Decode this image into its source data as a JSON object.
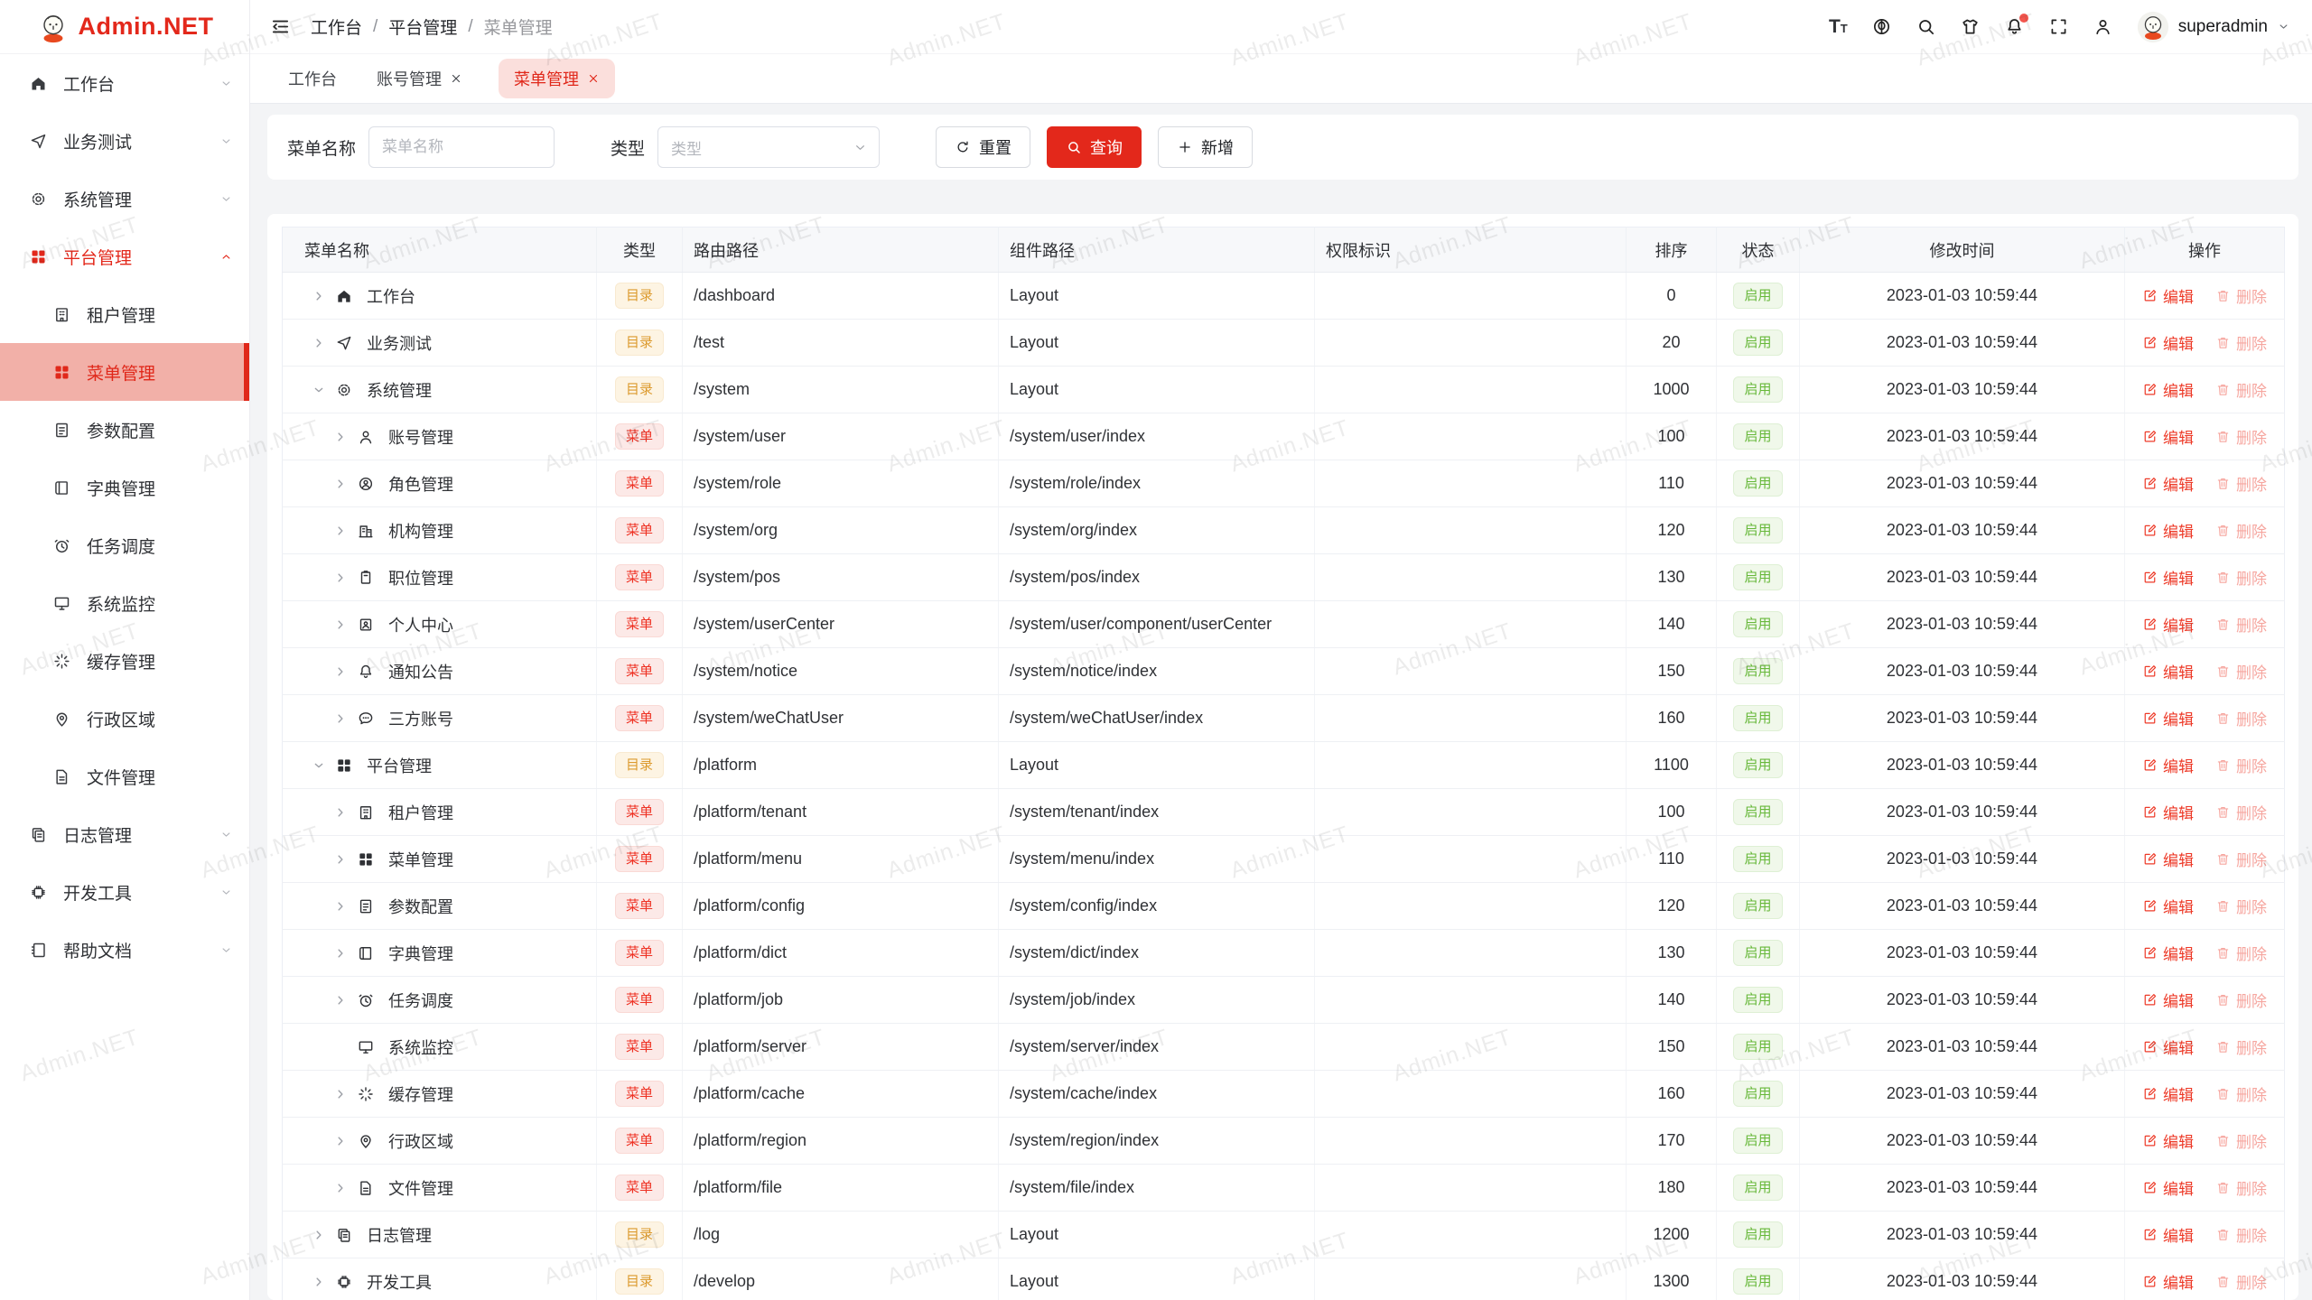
{
  "watermark": {
    "text": "Admin.NET"
  },
  "logo": {
    "title": "Admin.NET"
  },
  "header": {
    "breadcrumb": [
      "工作台",
      "平台管理",
      "菜单管理"
    ],
    "icons": [
      {
        "name": "font-size"
      },
      {
        "name": "language"
      },
      {
        "name": "search"
      },
      {
        "name": "theme"
      },
      {
        "name": "notification",
        "badge": true
      },
      {
        "name": "fullscreen"
      },
      {
        "name": "profile"
      }
    ],
    "user": "superadmin"
  },
  "tabs": [
    {
      "label": "工作台",
      "closable": false,
      "active": false
    },
    {
      "label": "账号管理",
      "closable": true,
      "active": false
    },
    {
      "label": "菜单管理",
      "closable": true,
      "active": true
    }
  ],
  "sidebar": {
    "items": [
      {
        "key": "workbench",
        "label": "工作台",
        "icon": "home",
        "chevron": "down"
      },
      {
        "key": "business-test",
        "label": "业务测试",
        "icon": "send",
        "chevron": "down"
      },
      {
        "key": "system-mgmt",
        "label": "系统管理",
        "icon": "gear",
        "chevron": "down"
      },
      {
        "key": "platform-mgmt",
        "label": "平台管理",
        "icon": "grid",
        "chevron": "up",
        "active": true,
        "children": [
          {
            "key": "tenant-mgmt",
            "label": "租户管理",
            "icon": "tenant"
          },
          {
            "key": "menu-mgmt",
            "label": "菜单管理",
            "icon": "grid",
            "selected": true
          },
          {
            "key": "param-config",
            "label": "参数配置",
            "icon": "config"
          },
          {
            "key": "dict-mgmt",
            "label": "字典管理",
            "icon": "dict"
          },
          {
            "key": "job-schedule",
            "label": "任务调度",
            "icon": "job"
          },
          {
            "key": "system-monitor",
            "label": "系统监控",
            "icon": "monitor"
          },
          {
            "key": "cache-mgmt",
            "label": "缓存管理",
            "icon": "cache"
          },
          {
            "key": "admin-region",
            "label": "行政区域",
            "icon": "region"
          },
          {
            "key": "file-mgmt",
            "label": "文件管理",
            "icon": "file"
          }
        ]
      },
      {
        "key": "log-mgmt",
        "label": "日志管理",
        "icon": "log",
        "chevron": "down"
      },
      {
        "key": "dev-tools",
        "label": "开发工具",
        "icon": "develop",
        "chevron": "down"
      },
      {
        "key": "help-docs",
        "label": "帮助文档",
        "icon": "docs",
        "chevron": "down"
      }
    ]
  },
  "filter": {
    "name_label": "菜单名称",
    "name_placeholder": "菜单名称",
    "type_label": "类型",
    "type_placeholder": "类型",
    "reset": "重置",
    "query": "查询",
    "add": "新增"
  },
  "table": {
    "columns": [
      "菜单名称",
      "类型",
      "路由路径",
      "组件路径",
      "权限标识",
      "排序",
      "状态",
      "修改时间",
      "操作"
    ],
    "type_labels": {
      "dir": "目录",
      "menu": "菜单"
    },
    "status_enabled": "启用",
    "actions": {
      "edit": "编辑",
      "delete": "删除"
    },
    "rows": [
      {
        "name": "工作台",
        "icon": "home",
        "level": 0,
        "expand": "closed",
        "type": "dir",
        "route": "/dashboard",
        "component": "Layout",
        "permission": "",
        "sort": "0",
        "status": "启用",
        "modified": "2023-01-03 10:59:44"
      },
      {
        "name": "业务测试",
        "icon": "send",
        "level": 0,
        "expand": "closed",
        "type": "dir",
        "route": "/test",
        "component": "Layout",
        "permission": "",
        "sort": "20",
        "status": "启用",
        "modified": "2023-01-03 10:59:44"
      },
      {
        "name": "系统管理",
        "icon": "gear",
        "level": 0,
        "expand": "open",
        "type": "dir",
        "route": "/system",
        "component": "Layout",
        "permission": "",
        "sort": "1000",
        "status": "启用",
        "modified": "2023-01-03 10:59:44"
      },
      {
        "name": "账号管理",
        "icon": "user",
        "level": 1,
        "expand": "closed",
        "type": "menu",
        "route": "/system/user",
        "component": "/system/user/index",
        "permission": "",
        "sort": "100",
        "status": "启用",
        "modified": "2023-01-03 10:59:44"
      },
      {
        "name": "角色管理",
        "icon": "role",
        "level": 1,
        "expand": "closed",
        "type": "menu",
        "route": "/system/role",
        "component": "/system/role/index",
        "permission": "",
        "sort": "110",
        "status": "启用",
        "modified": "2023-01-03 10:59:44"
      },
      {
        "name": "机构管理",
        "icon": "org",
        "level": 1,
        "expand": "closed",
        "type": "menu",
        "route": "/system/org",
        "component": "/system/org/index",
        "permission": "",
        "sort": "120",
        "status": "启用",
        "modified": "2023-01-03 10:59:44"
      },
      {
        "name": "职位管理",
        "icon": "pos",
        "level": 1,
        "expand": "closed",
        "type": "menu",
        "route": "/system/pos",
        "component": "/system/pos/index",
        "permission": "",
        "sort": "130",
        "status": "启用",
        "modified": "2023-01-03 10:59:44"
      },
      {
        "name": "个人中心",
        "icon": "usercenter",
        "level": 1,
        "expand": "closed",
        "type": "menu",
        "route": "/system/userCenter",
        "component": "/system/user/component/userCenter",
        "permission": "",
        "sort": "140",
        "status": "启用",
        "modified": "2023-01-03 10:59:44"
      },
      {
        "name": "通知公告",
        "icon": "notice",
        "level": 1,
        "expand": "closed",
        "type": "menu",
        "route": "/system/notice",
        "component": "/system/notice/index",
        "permission": "",
        "sort": "150",
        "status": "启用",
        "modified": "2023-01-03 10:59:44"
      },
      {
        "name": "三方账号",
        "icon": "wechat",
        "level": 1,
        "expand": "closed",
        "type": "menu",
        "route": "/system/weChatUser",
        "component": "/system/weChatUser/index",
        "permission": "",
        "sort": "160",
        "status": "启用",
        "modified": "2023-01-03 10:59:44"
      },
      {
        "name": "平台管理",
        "icon": "grid",
        "level": 0,
        "expand": "open",
        "type": "dir",
        "route": "/platform",
        "component": "Layout",
        "permission": "",
        "sort": "1100",
        "status": "启用",
        "modified": "2023-01-03 10:59:44"
      },
      {
        "name": "租户管理",
        "icon": "tenant",
        "level": 1,
        "expand": "closed",
        "type": "menu",
        "route": "/platform/tenant",
        "component": "/system/tenant/index",
        "permission": "",
        "sort": "100",
        "status": "启用",
        "modified": "2023-01-03 10:59:44"
      },
      {
        "name": "菜单管理",
        "icon": "grid",
        "level": 1,
        "expand": "closed",
        "type": "menu",
        "route": "/platform/menu",
        "component": "/system/menu/index",
        "permission": "",
        "sort": "110",
        "status": "启用",
        "modified": "2023-01-03 10:59:44"
      },
      {
        "name": "参数配置",
        "icon": "config",
        "level": 1,
        "expand": "closed",
        "type": "menu",
        "route": "/platform/config",
        "component": "/system/config/index",
        "permission": "",
        "sort": "120",
        "status": "启用",
        "modified": "2023-01-03 10:59:44"
      },
      {
        "name": "字典管理",
        "icon": "dict",
        "level": 1,
        "expand": "closed",
        "type": "menu",
        "route": "/platform/dict",
        "component": "/system/dict/index",
        "permission": "",
        "sort": "130",
        "status": "启用",
        "modified": "2023-01-03 10:59:44"
      },
      {
        "name": "任务调度",
        "icon": "job",
        "level": 1,
        "expand": "closed",
        "type": "menu",
        "route": "/platform/job",
        "component": "/system/job/index",
        "permission": "",
        "sort": "140",
        "status": "启用",
        "modified": "2023-01-03 10:59:44"
      },
      {
        "name": "系统监控",
        "icon": "monitor",
        "level": 1,
        "expand": "none",
        "type": "menu",
        "route": "/platform/server",
        "component": "/system/server/index",
        "permission": "",
        "sort": "150",
        "status": "启用",
        "modified": "2023-01-03 10:59:44"
      },
      {
        "name": "缓存管理",
        "icon": "cache",
        "level": 1,
        "expand": "closed",
        "type": "menu",
        "route": "/platform/cache",
        "component": "/system/cache/index",
        "permission": "",
        "sort": "160",
        "status": "启用",
        "modified": "2023-01-03 10:59:44"
      },
      {
        "name": "行政区域",
        "icon": "region",
        "level": 1,
        "expand": "closed",
        "type": "menu",
        "route": "/platform/region",
        "component": "/system/region/index",
        "permission": "",
        "sort": "170",
        "status": "启用",
        "modified": "2023-01-03 10:59:44"
      },
      {
        "name": "文件管理",
        "icon": "file",
        "level": 1,
        "expand": "closed",
        "type": "menu",
        "route": "/platform/file",
        "component": "/system/file/index",
        "permission": "",
        "sort": "180",
        "status": "启用",
        "modified": "2023-01-03 10:59:44"
      },
      {
        "name": "日志管理",
        "icon": "log",
        "level": 0,
        "expand": "closed",
        "type": "dir",
        "route": "/log",
        "component": "Layout",
        "permission": "",
        "sort": "1200",
        "status": "启用",
        "modified": "2023-01-03 10:59:44"
      },
      {
        "name": "开发工具",
        "icon": "develop",
        "level": 0,
        "expand": "closed",
        "type": "dir",
        "route": "/develop",
        "component": "Layout",
        "permission": "",
        "sort": "1300",
        "status": "启用",
        "modified": "2023-01-03 10:59:44"
      }
    ]
  },
  "colors": {
    "primary": "#e3281b",
    "selected_bg": "#f2b0a8",
    "tab_active_bg": "#fbdfdc",
    "tag_dir": "#dc9a2e",
    "tag_menu": "#ee3123",
    "status_green": "#67b83a",
    "delete_muted": "#f6a69f"
  }
}
